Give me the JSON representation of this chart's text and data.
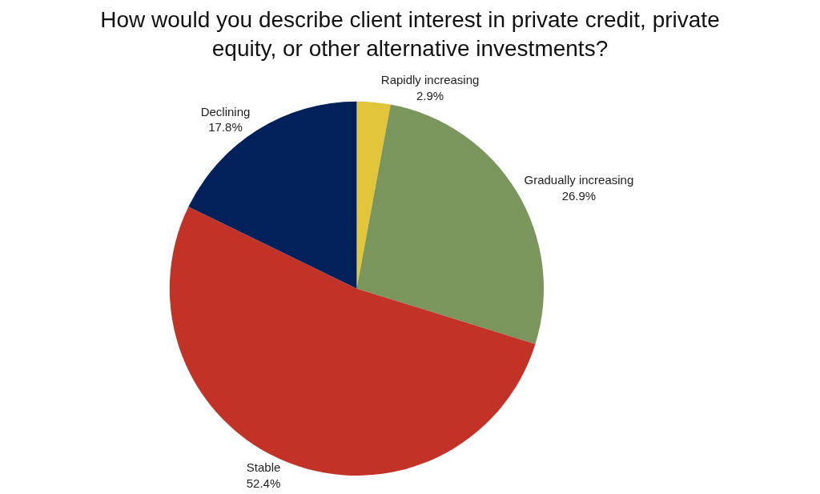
{
  "chart_data": {
    "type": "pie",
    "title": "How would you describe client interest in private credit, private equity, or other alternative investments?",
    "categories": [
      "Rapidly increasing",
      "Gradually increasing",
      "Stable",
      "Declining"
    ],
    "values": [
      2.9,
      26.9,
      52.4,
      17.8
    ],
    "value_labels": [
      "2.9%",
      "26.9%",
      "52.4%",
      "17.8%"
    ],
    "colors": [
      "#e3c53c",
      "#7a965c",
      "#c23226",
      "#02215a"
    ],
    "legend": false
  }
}
